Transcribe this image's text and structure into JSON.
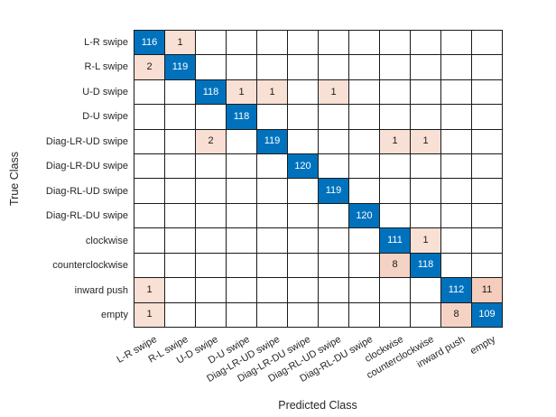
{
  "chart_data": {
    "type": "heatmap",
    "subtype": "confusion-matrix",
    "xlabel": "Predicted Class",
    "ylabel": "True Class",
    "classes": [
      "L-R swipe",
      "R-L swipe",
      "U-D swipe",
      "D-U swipe",
      "Diag-LR-UD swipe",
      "Diag-LR-DU swipe",
      "Diag-RL-UD swipe",
      "Diag-RL-DU swipe",
      "clockwise",
      "counterclockwise",
      "inward push",
      "empty"
    ],
    "matrix": [
      [
        116,
        1,
        0,
        0,
        0,
        0,
        0,
        0,
        0,
        0,
        0,
        0
      ],
      [
        2,
        119,
        0,
        0,
        0,
        0,
        0,
        0,
        0,
        0,
        0,
        0
      ],
      [
        0,
        0,
        118,
        1,
        1,
        0,
        1,
        0,
        0,
        0,
        0,
        0
      ],
      [
        0,
        0,
        0,
        118,
        0,
        0,
        0,
        0,
        0,
        0,
        0,
        0
      ],
      [
        0,
        0,
        2,
        0,
        119,
        0,
        0,
        0,
        1,
        1,
        0,
        0
      ],
      [
        0,
        0,
        0,
        0,
        0,
        120,
        0,
        0,
        0,
        0,
        0,
        0
      ],
      [
        0,
        0,
        0,
        0,
        0,
        0,
        119,
        0,
        0,
        0,
        0,
        0
      ],
      [
        0,
        0,
        0,
        0,
        0,
        0,
        0,
        120,
        0,
        0,
        0,
        0
      ],
      [
        0,
        0,
        0,
        0,
        0,
        0,
        0,
        0,
        111,
        1,
        0,
        0
      ],
      [
        0,
        0,
        0,
        0,
        0,
        0,
        0,
        0,
        8,
        118,
        0,
        0
      ],
      [
        1,
        0,
        0,
        0,
        0,
        0,
        0,
        0,
        0,
        0,
        112,
        11
      ],
      [
        1,
        0,
        0,
        0,
        0,
        0,
        0,
        0,
        0,
        0,
        8,
        109
      ]
    ],
    "layout": {
      "grid_on": true,
      "x_tick_rotation_deg": -30,
      "axis_ranges": "12x12 categorical"
    },
    "colors": {
      "diagonal": "#0072bd",
      "diagonal_text": "#ffffff",
      "off_diagonal_base": "#d95319",
      "off_diagonal_text": "#1a1a1a",
      "grid_line": "#1a1a1a",
      "label_color": "#262626",
      "background": "#ffffff"
    }
  }
}
